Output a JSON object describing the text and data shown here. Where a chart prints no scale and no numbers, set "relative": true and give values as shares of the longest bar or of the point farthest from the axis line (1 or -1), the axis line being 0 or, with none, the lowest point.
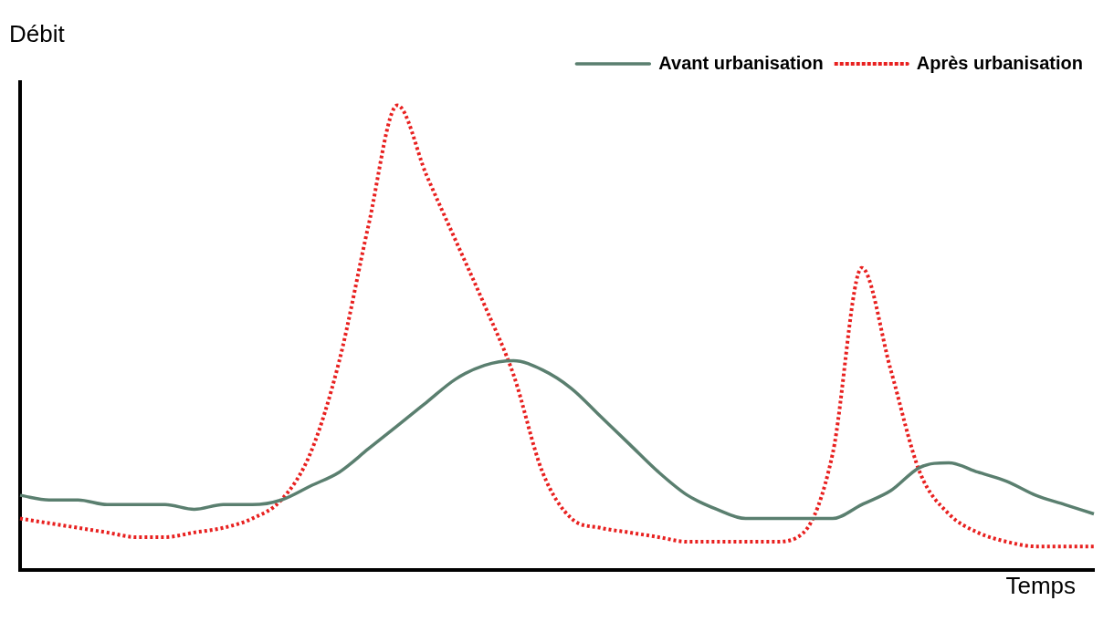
{
  "chart_data": {
    "type": "line",
    "relative": true,
    "xlabel": "Temps",
    "ylabel": "Débit",
    "legend": "top right",
    "marker": "none",
    "grid": false,
    "categories": [
      null,
      null,
      null,
      null,
      null,
      null,
      null,
      null,
      null,
      null,
      null,
      null,
      null,
      null,
      null,
      null,
      null,
      null,
      null,
      null,
      null,
      null,
      null,
      null,
      null,
      null,
      null,
      null,
      null,
      null,
      null,
      null,
      null,
      null,
      null,
      null,
      null,
      null
    ],
    "series": [
      {
        "name": "Avant urbanisation",
        "color": "#5a7f6f",
        "line_style": "solid",
        "values": [
          0.16,
          0.15,
          0.15,
          0.14,
          0.14,
          0.14,
          0.13,
          0.14,
          0.14,
          0.15,
          0.18,
          0.21,
          0.26,
          0.31,
          0.36,
          0.41,
          0.44,
          0.45,
          0.43,
          0.39,
          0.33,
          0.27,
          0.21,
          0.16,
          0.13,
          0.11,
          0.11,
          0.11,
          0.11,
          0.14,
          0.17,
          0.22,
          0.23,
          0.21,
          0.19,
          0.16,
          0.14,
          0.12
        ]
      },
      {
        "name": "Après urbanisation",
        "color": "#e8201f",
        "line_style": "dotted",
        "values": [
          0.11,
          0.1,
          0.09,
          0.08,
          0.07,
          0.07,
          0.08,
          0.09,
          0.11,
          0.15,
          0.25,
          0.45,
          0.74,
          1,
          0.85,
          0.71,
          0.57,
          0.42,
          0.21,
          0.11,
          0.09,
          0.08,
          0.07,
          0.06,
          0.06,
          0.06,
          0.06,
          0.08,
          0.25,
          0.65,
          0.43,
          0.21,
          0.12,
          0.08,
          0.06,
          0.05,
          0.05,
          0.05
        ]
      }
    ]
  }
}
